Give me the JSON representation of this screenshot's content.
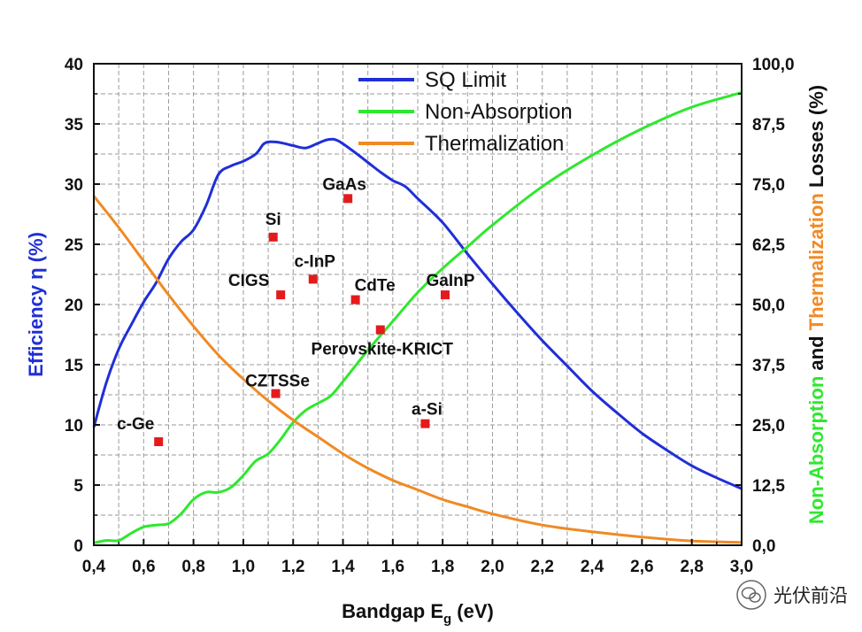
{
  "chart_data": {
    "type": "line",
    "title": "",
    "xlabel": "Bandgap E",
    "xlabel_sub": "g",
    "xlabel_unit": " (eV)",
    "ylabel_left": "Efficiency η (%)",
    "ylabel_right_parts": [
      {
        "text": "Non-Absorption",
        "color": "#2ee82e"
      },
      {
        "text": " and ",
        "color": "#111111"
      },
      {
        "text": "Thermalization",
        "color": "#f08a24"
      },
      {
        "text": " Losses (%)",
        "color": "#111111"
      }
    ],
    "xlim": [
      0.4,
      3.0
    ],
    "ylim_left": [
      0,
      40
    ],
    "ylim_right": [
      0,
      100
    ],
    "x_ticks": [
      "0,4",
      "0,6",
      "0,8",
      "1,0",
      "1,2",
      "1,4",
      "1,6",
      "1,8",
      "2,0",
      "2,2",
      "2,4",
      "2,6",
      "2,8",
      "3,0"
    ],
    "y_left_ticks": [
      "0",
      "5",
      "10",
      "15",
      "20",
      "25",
      "30",
      "35",
      "40"
    ],
    "y_right_ticks": [
      "0,0",
      "12,5",
      "25,0",
      "37,5",
      "50,0",
      "62,5",
      "75,0",
      "87,5",
      "100,0"
    ],
    "grid": true,
    "legend_position": "top-center",
    "series": [
      {
        "name": "SQ Limit",
        "axis": "left",
        "color": "#1f2fd6",
        "x": [
          0.4,
          0.45,
          0.5,
          0.55,
          0.6,
          0.65,
          0.7,
          0.75,
          0.8,
          0.85,
          0.9,
          0.95,
          1.0,
          1.05,
          1.08,
          1.1,
          1.13,
          1.16,
          1.2,
          1.25,
          1.3,
          1.34,
          1.38,
          1.45,
          1.5,
          1.55,
          1.6,
          1.65,
          1.7,
          1.8,
          1.9,
          2.0,
          2.1,
          2.2,
          2.3,
          2.4,
          2.5,
          2.6,
          2.7,
          2.8,
          2.9,
          3.0
        ],
        "y": [
          9.8,
          13.5,
          16.3,
          18.3,
          20.2,
          21.8,
          23.8,
          25.2,
          26.2,
          28.2,
          30.8,
          31.5,
          31.9,
          32.5,
          33.3,
          33.5,
          33.5,
          33.4,
          33.2,
          33.0,
          33.4,
          33.7,
          33.6,
          32.6,
          31.8,
          31.0,
          30.3,
          29.8,
          28.8,
          26.8,
          24.2,
          21.7,
          19.3,
          17.0,
          14.9,
          12.8,
          11.0,
          9.3,
          7.9,
          6.6,
          5.6,
          4.7
        ]
      },
      {
        "name": "Non-Absorption",
        "axis": "right",
        "color": "#2ee82e",
        "x": [
          0.4,
          0.45,
          0.5,
          0.55,
          0.6,
          0.65,
          0.7,
          0.75,
          0.8,
          0.85,
          0.9,
          0.95,
          1.0,
          1.05,
          1.1,
          1.15,
          1.2,
          1.25,
          1.3,
          1.35,
          1.4,
          1.5,
          1.6,
          1.7,
          1.8,
          1.9,
          2.0,
          2.2,
          2.4,
          2.6,
          2.8,
          3.0
        ],
        "y": [
          0.5,
          1.0,
          1.0,
          2.5,
          3.8,
          4.2,
          4.5,
          6.5,
          9.5,
          11.0,
          11.0,
          12.0,
          14.5,
          17.5,
          19.0,
          22.0,
          25.5,
          28.0,
          29.5,
          31.0,
          34.0,
          40.5,
          46.5,
          52.5,
          57.5,
          62.0,
          66.5,
          74.5,
          81.0,
          86.5,
          91.0,
          94.0
        ]
      },
      {
        "name": "Thermalization",
        "axis": "right",
        "color": "#f08a24",
        "x": [
          0.4,
          0.5,
          0.6,
          0.7,
          0.8,
          0.9,
          1.0,
          1.1,
          1.2,
          1.3,
          1.4,
          1.5,
          1.6,
          1.7,
          1.8,
          1.9,
          2.0,
          2.2,
          2.4,
          2.6,
          2.8,
          3.0
        ],
        "y": [
          72.5,
          66.0,
          59.0,
          52.0,
          45.5,
          39.5,
          34.5,
          30.0,
          26.0,
          22.5,
          19.0,
          16.0,
          13.5,
          11.5,
          9.5,
          8.0,
          6.5,
          4.2,
          2.8,
          1.7,
          0.9,
          0.6
        ]
      }
    ],
    "points": [
      {
        "label": "c-Ge",
        "x": 0.66,
        "y": 8.6
      },
      {
        "label": "Si",
        "x": 1.12,
        "y": 25.6
      },
      {
        "label": "CIGS",
        "x": 1.15,
        "y": 20.8
      },
      {
        "label": "c-InP",
        "x": 1.28,
        "y": 22.1
      },
      {
        "label": "CZTSSe",
        "x": 1.13,
        "y": 12.6
      },
      {
        "label": "GaAs",
        "x": 1.42,
        "y": 28.8
      },
      {
        "label": "CdTe",
        "x": 1.45,
        "y": 20.4
      },
      {
        "label": "Perovskite-KRICT",
        "x": 1.55,
        "y": 17.9
      },
      {
        "label": "GaInP",
        "x": 1.81,
        "y": 20.8
      },
      {
        "label": "a-Si",
        "x": 1.73,
        "y": 10.1
      }
    ],
    "point_color": "#e41a1c"
  },
  "watermark": {
    "text": "光伏前沿",
    "icon": "wechat-icon"
  }
}
